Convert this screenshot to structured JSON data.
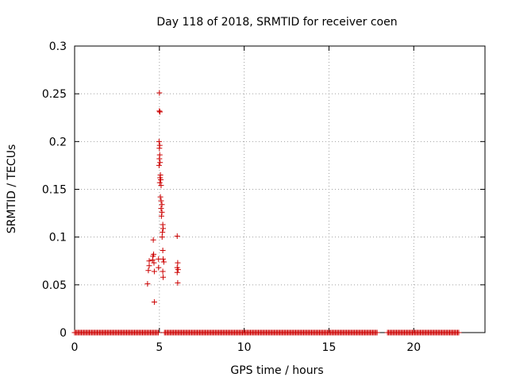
{
  "chart_data": {
    "type": "scatter",
    "title": "Day 118 of 2018, SRMTID for receiver coen",
    "xlabel": "GPS time / hours",
    "ylabel": "SRMTID / TECUs",
    "xlim": [
      0,
      24.2
    ],
    "ylim": [
      0,
      0.3
    ],
    "x_ticks": [
      0,
      5,
      10,
      15,
      20
    ],
    "x_tick_labels": [
      "0",
      "5",
      "10",
      "15",
      "20"
    ],
    "y_ticks": [
      0,
      0.05,
      0.1,
      0.15,
      0.2,
      0.25,
      0.3
    ],
    "y_tick_labels": [
      "0",
      "0.05",
      "0.1",
      "0.15",
      "0.2",
      "0.25",
      "0.3"
    ],
    "grid": true,
    "marker": "+",
    "color": "#cc0000",
    "zero_segments": [
      [
        0.0,
        4.95
      ],
      [
        5.3,
        17.85
      ],
      [
        18.45,
        22.7
      ]
    ],
    "zero_step": 0.0667,
    "points": [
      [
        4.3,
        0.051
      ],
      [
        4.35,
        0.065
      ],
      [
        4.4,
        0.07
      ],
      [
        4.4,
        0.075
      ],
      [
        4.6,
        0.076
      ],
      [
        4.62,
        0.08
      ],
      [
        4.64,
        0.097
      ],
      [
        4.66,
        0.082
      ],
      [
        4.68,
        0.073
      ],
      [
        4.7,
        0.032
      ],
      [
        4.7,
        0.064
      ],
      [
        4.95,
        0.068
      ],
      [
        4.95,
        0.077
      ],
      [
        5.0,
        0.251
      ],
      [
        5.0,
        0.232
      ],
      [
        5.03,
        0.231
      ],
      [
        4.98,
        0.2
      ],
      [
        5.02,
        0.196
      ],
      [
        5.0,
        0.193
      ],
      [
        5.02,
        0.186
      ],
      [
        5.0,
        0.182
      ],
      [
        5.04,
        0.178
      ],
      [
        4.98,
        0.175
      ],
      [
        5.06,
        0.165
      ],
      [
        5.04,
        0.162
      ],
      [
        5.08,
        0.16
      ],
      [
        5.02,
        0.157
      ],
      [
        5.1,
        0.154
      ],
      [
        5.06,
        0.142
      ],
      [
        5.1,
        0.138
      ],
      [
        5.15,
        0.134
      ],
      [
        5.1,
        0.13
      ],
      [
        5.15,
        0.126
      ],
      [
        5.12,
        0.122
      ],
      [
        5.2,
        0.113
      ],
      [
        5.22,
        0.109
      ],
      [
        5.18,
        0.105
      ],
      [
        5.16,
        0.1
      ],
      [
        5.2,
        0.086
      ],
      [
        5.22,
        0.077
      ],
      [
        5.26,
        0.074
      ],
      [
        5.2,
        0.064
      ],
      [
        5.22,
        0.058
      ],
      [
        6.05,
        0.101
      ],
      [
        6.08,
        0.073
      ],
      [
        6.05,
        0.068
      ],
      [
        6.1,
        0.066
      ],
      [
        6.05,
        0.063
      ],
      [
        6.08,
        0.052
      ]
    ]
  }
}
